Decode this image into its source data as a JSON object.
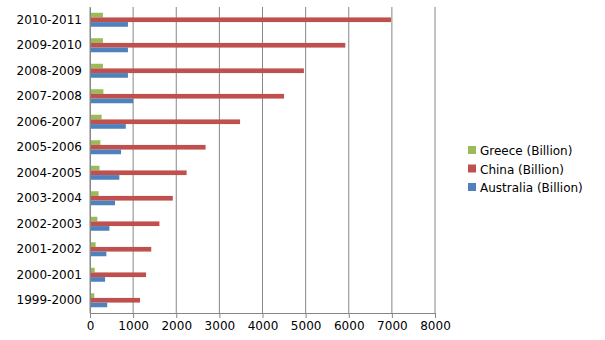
{
  "chart_data": {
    "type": "bar",
    "orientation": "horizontal",
    "grid": true,
    "legend": "right",
    "categories": [
      "1999-2000",
      "2000-2001",
      "2001-2002",
      "2002-2003",
      "2003-2004",
      "2004-2005",
      "2005-2006",
      "2006-2007",
      "2007-2008",
      "2008-2009",
      "2009-2010",
      "2010-2011"
    ],
    "series": [
      {
        "name": "Greece (Billion)",
        "color": "#9bbb59",
        "values": [
          100,
          110,
          130,
          170,
          200,
          220,
          240,
          270,
          310,
          300,
          300,
          300
        ]
      },
      {
        "name": "China (Billion)",
        "color": "#c0504d",
        "values": [
          1160,
          1300,
          1420,
          1610,
          1920,
          2240,
          2680,
          3480,
          4500,
          4960,
          5920,
          6980
        ]
      },
      {
        "name": "Australia (Billion)",
        "color": "#4f81bd",
        "values": [
          400,
          350,
          380,
          450,
          580,
          680,
          720,
          830,
          1000,
          880,
          880,
          880
        ]
      }
    ],
    "xlim": [
      0,
      8000
    ],
    "xticks": [
      0,
      1000,
      2000,
      3000,
      4000,
      5000,
      6000,
      7000,
      8000
    ]
  }
}
